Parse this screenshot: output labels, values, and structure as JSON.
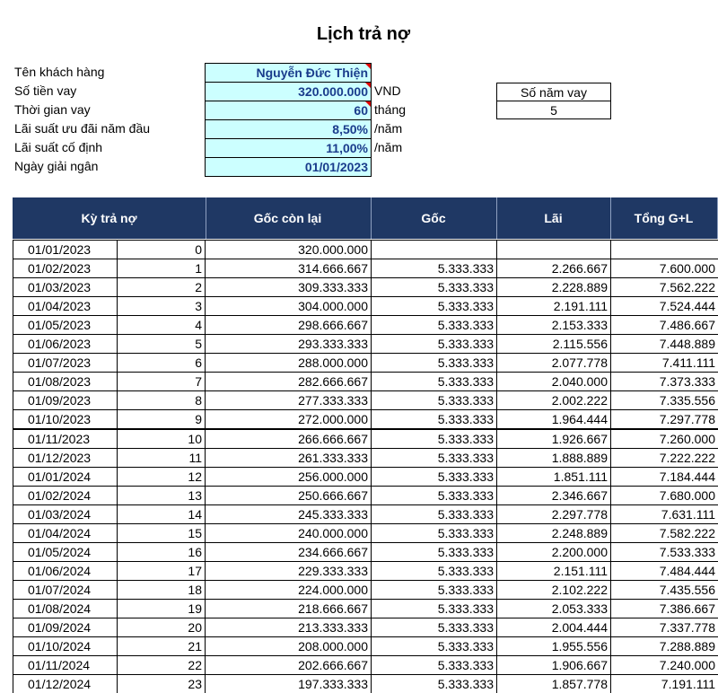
{
  "title": "Lịch trả nợ",
  "loan_info": [
    {
      "label": "Tên khách hàng",
      "value": "Nguyễn Đức Thiện"
    },
    {
      "label": "Số tiền vay",
      "value": "320.000.000",
      "unit": "VND"
    },
    {
      "label": "Thời gian vay",
      "value": "60",
      "unit": "tháng"
    },
    {
      "label": "Lãi suất ưu đãi năm đầu",
      "value": "8,50%",
      "unit": "/năm"
    },
    {
      "label": "Lãi suất cố định",
      "value": "11,00%",
      "unit": "/năm"
    },
    {
      "label": "Ngày giải ngân",
      "value": "01/01/2023"
    }
  ],
  "side_box": {
    "header": "Số năm vay",
    "value": "5"
  },
  "table": {
    "columns": [
      "Kỳ trả nợ",
      "Gốc còn lại",
      "Gốc",
      "Lãi",
      "Tổng G+L"
    ],
    "rows": [
      [
        "01/01/2023",
        0,
        "320.000.000",
        null,
        null,
        null
      ],
      [
        "01/02/2023",
        1,
        "314.666.667",
        "5.333.333",
        "2.266.667",
        "7.600.000"
      ],
      [
        "01/03/2023",
        2,
        "309.333.333",
        "5.333.333",
        "2.228.889",
        "7.562.222"
      ],
      [
        "01/04/2023",
        3,
        "304.000.000",
        "5.333.333",
        "2.191.111",
        "7.524.444"
      ],
      [
        "01/05/2023",
        4,
        "298.666.667",
        "5.333.333",
        "2.153.333",
        "7.486.667"
      ],
      [
        "01/06/2023",
        5,
        "293.333.333",
        "5.333.333",
        "2.115.556",
        "7.448.889"
      ],
      [
        "01/07/2023",
        6,
        "288.000.000",
        "5.333.333",
        "2.077.778",
        "7.411.111"
      ],
      [
        "01/08/2023",
        7,
        "282.666.667",
        "5.333.333",
        "2.040.000",
        "7.373.333"
      ],
      [
        "01/09/2023",
        8,
        "277.333.333",
        "5.333.333",
        "2.002.222",
        "7.335.556"
      ],
      [
        "01/10/2023",
        9,
        "272.000.000",
        "5.333.333",
        "1.964.444",
        "7.297.778"
      ],
      [
        "01/11/2023",
        10,
        "266.666.667",
        "5.333.333",
        "1.926.667",
        "7.260.000"
      ],
      [
        "01/12/2023",
        11,
        "261.333.333",
        "5.333.333",
        "1.888.889",
        "7.222.222"
      ],
      [
        "01/01/2024",
        12,
        "256.000.000",
        "5.333.333",
        "1.851.111",
        "7.184.444"
      ],
      [
        "01/02/2024",
        13,
        "250.666.667",
        "5.333.333",
        "2.346.667",
        "7.680.000"
      ],
      [
        "01/03/2024",
        14,
        "245.333.333",
        "5.333.333",
        "2.297.778",
        "7.631.111"
      ],
      [
        "01/04/2024",
        15,
        "240.000.000",
        "5.333.333",
        "2.248.889",
        "7.582.222"
      ],
      [
        "01/05/2024",
        16,
        "234.666.667",
        "5.333.333",
        "2.200.000",
        "7.533.333"
      ],
      [
        "01/06/2024",
        17,
        "229.333.333",
        "5.333.333",
        "2.151.111",
        "7.484.444"
      ],
      [
        "01/07/2024",
        18,
        "224.000.000",
        "5.333.333",
        "2.102.222",
        "7.435.556"
      ],
      [
        "01/08/2024",
        19,
        "218.666.667",
        "5.333.333",
        "2.053.333",
        "7.386.667"
      ],
      [
        "01/09/2024",
        20,
        "213.333.333",
        "5.333.333",
        "2.004.444",
        "7.337.778"
      ],
      [
        "01/10/2024",
        21,
        "208.000.000",
        "5.333.333",
        "1.955.556",
        "7.288.889"
      ],
      [
        "01/11/2024",
        22,
        "202.666.667",
        "5.333.333",
        "1.906.667",
        "7.240.000"
      ],
      [
        "01/12/2024",
        23,
        "197.333.333",
        "5.333.333",
        "1.857.778",
        "7.191.111"
      ]
    ]
  }
}
